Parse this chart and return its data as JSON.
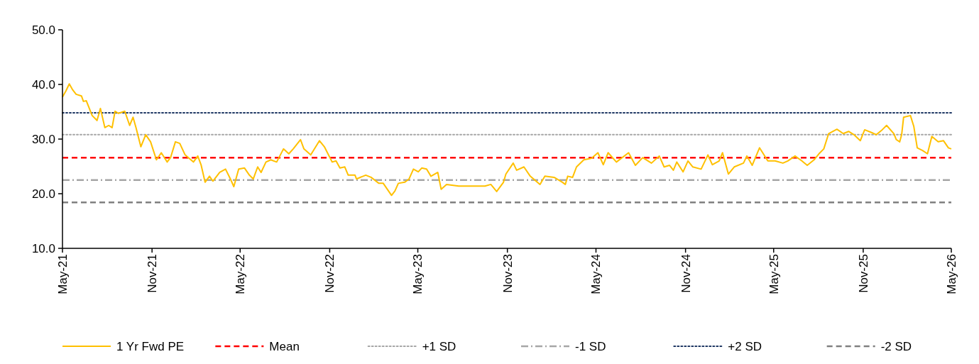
{
  "chart_data": {
    "type": "line",
    "legend": "bottom",
    "xlim": [
      "2021-05-01",
      "2026-05-01"
    ],
    "xticks": [
      {
        "value": "2021-05",
        "label": "May-21"
      },
      {
        "value": "2021-11",
        "label": "Nov-21"
      },
      {
        "value": "2022-05",
        "label": "May-22"
      },
      {
        "value": "2022-11",
        "label": "Nov-22"
      },
      {
        "value": "2023-05",
        "label": "May-23"
      },
      {
        "value": "2023-11",
        "label": "Nov-23"
      },
      {
        "value": "2024-05",
        "label": "May-24"
      },
      {
        "value": "2024-11",
        "label": "Nov-24"
      },
      {
        "value": "2025-05",
        "label": "May-25"
      },
      {
        "value": "2025-11",
        "label": "Nov-25"
      },
      {
        "value": "2026-05",
        "label": "May-26"
      }
    ],
    "ylim": [
      10,
      50
    ],
    "yticks": [
      {
        "value": 10,
        "label": "10.0"
      },
      {
        "value": 20,
        "label": "20.0"
      },
      {
        "value": 30,
        "label": "30.0"
      },
      {
        "value": 40,
        "label": "40.0"
      },
      {
        "value": 50,
        "label": "50.0"
      }
    ],
    "series": [
      {
        "name": "1 Yr Fwd PE",
        "color": "#ffc000",
        "line_style": "solid",
        "x": [
          "2021-05-01",
          "2021-05-08",
          "2021-05-15",
          "2021-05-22",
          "2021-05-29",
          "2021-06-09",
          "2021-06-13",
          "2021-06-19",
          "2021-07-01",
          "2021-07-11",
          "2021-07-18",
          "2021-07-27",
          "2021-08-04",
          "2021-08-11",
          "2021-08-17",
          "2021-08-24",
          "2021-09-06",
          "2021-09-16",
          "2021-09-23",
          "2021-09-29",
          "2021-10-09",
          "2021-10-19",
          "2021-10-29",
          "2021-11-10",
          "2021-11-20",
          "2021-12-02",
          "2021-12-09",
          "2021-12-19",
          "2021-12-28",
          "2022-01-08",
          "2022-01-25",
          "2022-02-03",
          "2022-02-10",
          "2022-02-18",
          "2022-02-27",
          "2022-03-06",
          "2022-03-20",
          "2022-04-01",
          "2022-04-11",
          "2022-04-18",
          "2022-04-28",
          "2022-05-10",
          "2022-05-20",
          "2022-05-28",
          "2022-06-06",
          "2022-06-13",
          "2022-06-23",
          "2022-07-03",
          "2022-07-15",
          "2022-07-29",
          "2022-08-09",
          "2022-08-18",
          "2022-09-02",
          "2022-09-09",
          "2022-09-23",
          "2022-10-11",
          "2022-10-21",
          "2022-11-06",
          "2022-11-14",
          "2022-11-22",
          "2022-12-02",
          "2022-12-09",
          "2022-12-23",
          "2022-12-26",
          "2023-01-14",
          "2023-01-25",
          "2023-02-10",
          "2023-02-19",
          "2023-03-08",
          "2023-03-15",
          "2023-03-22",
          "2023-04-04",
          "2023-04-13",
          "2023-04-22",
          "2023-05-02",
          "2023-05-09",
          "2023-05-19",
          "2023-05-28",
          "2023-06-11",
          "2023-06-18",
          "2023-06-29",
          "2023-07-24",
          "2023-08-23",
          "2023-09-16",
          "2023-09-28",
          "2023-10-10",
          "2023-10-24",
          "2023-10-29",
          "2023-11-13",
          "2023-11-20",
          "2023-12-05",
          "2023-12-18",
          "2024-01-07",
          "2024-01-17",
          "2024-02-05",
          "2024-02-22",
          "2024-02-28",
          "2024-03-04",
          "2024-03-14",
          "2024-03-22",
          "2024-04-06",
          "2024-04-22",
          "2024-05-05",
          "2024-05-16",
          "2024-05-26",
          "2024-06-12",
          "2024-07-07",
          "2024-07-21",
          "2024-08-05",
          "2024-08-23",
          "2024-09-08",
          "2024-09-18",
          "2024-09-29",
          "2024-10-07",
          "2024-10-14",
          "2024-10-27",
          "2024-11-06",
          "2024-11-16",
          "2024-12-03",
          "2024-12-17",
          "2024-12-26",
          "2025-01-09",
          "2025-01-16",
          "2025-01-28",
          "2025-02-09",
          "2025-02-28",
          "2025-03-07",
          "2025-03-18",
          "2025-04-02",
          "2025-04-19",
          "2025-05-04",
          "2025-05-20",
          "2025-05-30",
          "2025-06-14",
          "2025-06-28",
          "2025-07-09",
          "2025-07-23",
          "2025-08-02",
          "2025-08-12",
          "2025-08-22",
          "2025-09-08",
          "2025-09-21",
          "2025-10-02",
          "2025-10-13",
          "2025-10-26",
          "2025-11-04",
          "2025-11-18",
          "2025-11-28",
          "2025-12-10",
          "2025-12-19",
          "2026-01-03",
          "2026-01-08",
          "2026-01-15",
          "2026-01-19",
          "2026-01-23",
          "2026-02-06",
          "2026-02-13",
          "2026-02-20",
          "2026-03-03",
          "2026-03-13",
          "2026-03-22",
          "2026-04-04",
          "2026-04-15",
          "2026-04-25",
          "2026-05-01"
        ],
        "values": [
          37.7,
          38.8,
          40.1,
          39.0,
          38.2,
          37.9,
          36.9,
          37.0,
          34.3,
          33.4,
          35.6,
          32.1,
          32.5,
          32.1,
          35.1,
          34.7,
          35.1,
          32.5,
          34.0,
          32.1,
          28.6,
          30.8,
          29.5,
          26.2,
          27.5,
          25.8,
          26.6,
          29.5,
          29.2,
          27.1,
          25.8,
          26.9,
          25.2,
          22.1,
          23.2,
          22.3,
          23.9,
          24.5,
          22.7,
          21.3,
          24.5,
          24.7,
          23.4,
          22.7,
          24.9,
          23.9,
          25.8,
          26.2,
          25.8,
          28.2,
          27.3,
          28.2,
          29.9,
          28.2,
          27.1,
          29.7,
          28.6,
          25.8,
          26.0,
          24.7,
          24.9,
          23.4,
          23.4,
          22.7,
          23.4,
          23.0,
          21.9,
          21.9,
          19.7,
          20.5,
          21.9,
          22.1,
          22.7,
          24.5,
          24.0,
          24.7,
          24.5,
          23.2,
          23.9,
          20.8,
          21.7,
          21.4,
          21.4,
          21.4,
          21.7,
          20.4,
          22.1,
          23.6,
          25.6,
          24.3,
          24.9,
          23.2,
          21.7,
          23.2,
          23.0,
          22.1,
          21.7,
          23.2,
          23.0,
          24.9,
          26.2,
          26.5,
          27.5,
          25.3,
          27.5,
          25.8,
          27.5,
          25.2,
          26.6,
          25.6,
          26.9,
          24.9,
          25.2,
          24.3,
          25.8,
          24.0,
          26.0,
          24.9,
          24.5,
          27.1,
          25.3,
          26.0,
          27.5,
          23.6,
          24.9,
          25.6,
          26.9,
          25.2,
          28.4,
          26.0,
          26.0,
          25.6,
          26.0,
          26.9,
          26.0,
          25.2,
          26.2,
          27.3,
          28.2,
          31.0,
          31.8,
          31.0,
          31.4,
          30.8,
          29.7,
          31.7,
          31.2,
          30.8,
          31.7,
          32.5,
          31.0,
          29.9,
          29.5,
          30.8,
          34.0,
          34.3,
          32.3,
          28.4,
          27.9,
          27.3,
          30.5,
          29.5,
          29.7,
          28.4,
          28.2
        ]
      },
      {
        "name": "Mean",
        "color": "#ff0000",
        "line_style": "dashed",
        "x": [
          "2021-05-01",
          "2026-05-01"
        ],
        "values": [
          26.6,
          26.6
        ]
      },
      {
        "name": "+1 SD",
        "color": "#a6a6a6",
        "line_style": "dotted",
        "x": [
          "2021-05-01",
          "2026-05-01"
        ],
        "values": [
          30.8,
          30.8
        ]
      },
      {
        "name": "-1 SD",
        "color": "#a6a6a6",
        "line_style": "dashdot",
        "x": [
          "2021-05-01",
          "2026-05-01"
        ],
        "values": [
          22.5,
          22.5
        ]
      },
      {
        "name": "+2 SD",
        "color": "#1f3864",
        "line_style": "dotted",
        "x": [
          "2021-05-01",
          "2026-05-01"
        ],
        "values": [
          34.8,
          34.8
        ]
      },
      {
        "name": "-2 SD",
        "color": "#808080",
        "line_style": "dashed",
        "x": [
          "2021-05-01",
          "2026-05-01"
        ],
        "values": [
          18.4,
          18.4
        ]
      }
    ]
  }
}
